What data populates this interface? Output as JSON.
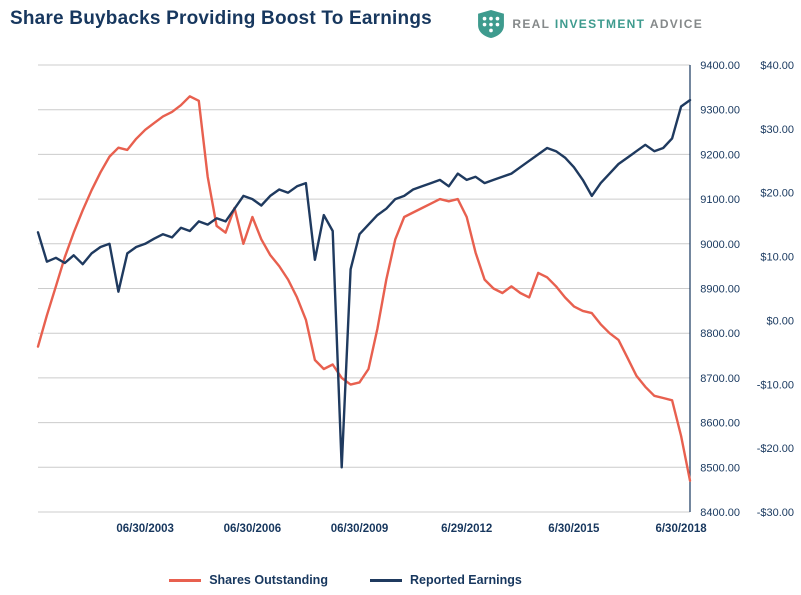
{
  "header": {
    "title": "Share Buybacks Providing Boost To Earnings",
    "logo": {
      "word1": "REAL",
      "word2": "INVESTMENT",
      "word3": "ADVICE"
    }
  },
  "colors": {
    "title": "#17375E",
    "grid": "#CCCCCC",
    "axis_line": "#17375E",
    "axis_text": "#17375E",
    "logo_gray": "#85898A",
    "logo_teal": "#3E9B8E"
  },
  "chart_data": {
    "type": "line",
    "title": "Share Buybacks Providing Boost To Earnings",
    "n_points": 74,
    "x_tick_labels": [
      {
        "index": 12,
        "label": "06/30/2003"
      },
      {
        "index": 24,
        "label": "06/30/2006"
      },
      {
        "index": 36,
        "label": "06/30/2009"
      },
      {
        "index": 48,
        "label": "6/29/2012"
      },
      {
        "index": 60,
        "label": "6/30/2015"
      },
      {
        "index": 72,
        "label": "6/30/2018"
      }
    ],
    "right_axis_shares": {
      "min": 8400,
      "max": 9400,
      "step": 100,
      "labels": [
        "9400.00",
        "9300.00",
        "9200.00",
        "9100.00",
        "9000.00",
        "8900.00",
        "8800.00",
        "8700.00",
        "8600.00",
        "8500.00",
        "8400.00"
      ]
    },
    "right_axis_earnings": {
      "min": -30,
      "max": 40,
      "step": 10,
      "labels": [
        "$40.00",
        "$30.00",
        "$20.00",
        "$10.00",
        "$0.00",
        "-$10.00",
        "-$20.00",
        "-$30.00"
      ]
    },
    "grid": true,
    "legend_position": "bottom",
    "series": [
      {
        "name": "Shares Outstanding",
        "axis": "shares",
        "color": "#E8604F",
        "values": [
          8770,
          8840,
          8905,
          8970,
          9025,
          9075,
          9120,
          9160,
          9195,
          9215,
          9210,
          9235,
          9255,
          9270,
          9285,
          9295,
          9310,
          9330,
          9320,
          9150,
          9040,
          9025,
          9080,
          9000,
          9060,
          9010,
          8975,
          8950,
          8920,
          8880,
          8830,
          8740,
          8720,
          8730,
          8700,
          8685,
          8690,
          8720,
          8810,
          8920,
          9010,
          9060,
          9070,
          9080,
          9090,
          9100,
          9095,
          9100,
          9060,
          8980,
          8920,
          8900,
          8890,
          8905,
          8890,
          8880,
          8935,
          8925,
          8905,
          8880,
          8860,
          8850,
          8845,
          8820,
          8800,
          8785,
          8745,
          8705,
          8680,
          8660,
          8655,
          8650,
          8570,
          8470
        ]
      },
      {
        "name": "Reported Earnings",
        "axis": "earnings",
        "color": "#1F3A5F",
        "values": [
          13.8,
          9.2,
          9.8,
          9.0,
          10.2,
          8.8,
          10.5,
          11.5,
          12.0,
          4.5,
          10.5,
          11.5,
          12.0,
          12.8,
          13.5,
          13.0,
          14.5,
          14.0,
          15.5,
          15.0,
          16.0,
          15.5,
          17.5,
          19.5,
          19.0,
          18.0,
          19.5,
          20.5,
          20.0,
          21.0,
          21.5,
          9.5,
          16.5,
          14.0,
          -23.0,
          8.0,
          13.5,
          15.0,
          16.5,
          17.5,
          19.0,
          19.5,
          20.5,
          21.0,
          21.5,
          22.0,
          21.0,
          23.0,
          22.0,
          22.5,
          21.5,
          22.0,
          22.5,
          23.0,
          24.0,
          25.0,
          26.0,
          27.0,
          26.5,
          25.5,
          24.0,
          22.0,
          19.5,
          21.5,
          23.0,
          24.5,
          25.5,
          26.5,
          27.5,
          26.5,
          27.0,
          28.5,
          33.5,
          34.5
        ]
      }
    ]
  }
}
